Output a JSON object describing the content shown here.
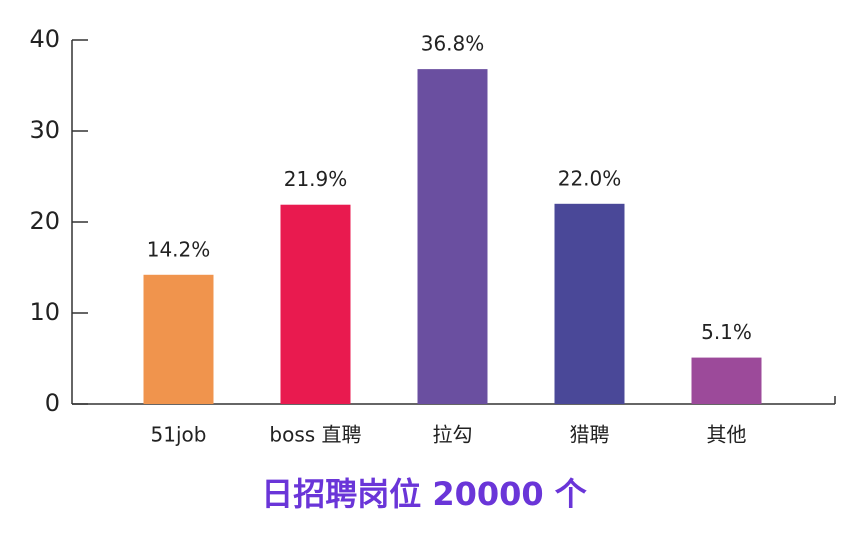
{
  "chart_data": {
    "type": "bar",
    "title": "日招聘岗位 20000 个",
    "title_color": "#6a35d8",
    "categories": [
      "51job",
      "boss 直聘",
      "拉勾",
      "猎聘",
      "其他"
    ],
    "values": [
      14.2,
      21.9,
      36.8,
      22.0,
      5.1
    ],
    "value_labels": [
      "14.2%",
      "21.9%",
      "36.8%",
      "22.0%",
      "5.1%"
    ],
    "colors": [
      "#f0944d",
      "#e91a4f",
      "#6a4fa0",
      "#4a4898",
      "#9c4a9a"
    ],
    "ylim": [
      0,
      40
    ],
    "yticks": [
      0,
      10,
      20,
      30,
      40
    ],
    "grid": false
  }
}
